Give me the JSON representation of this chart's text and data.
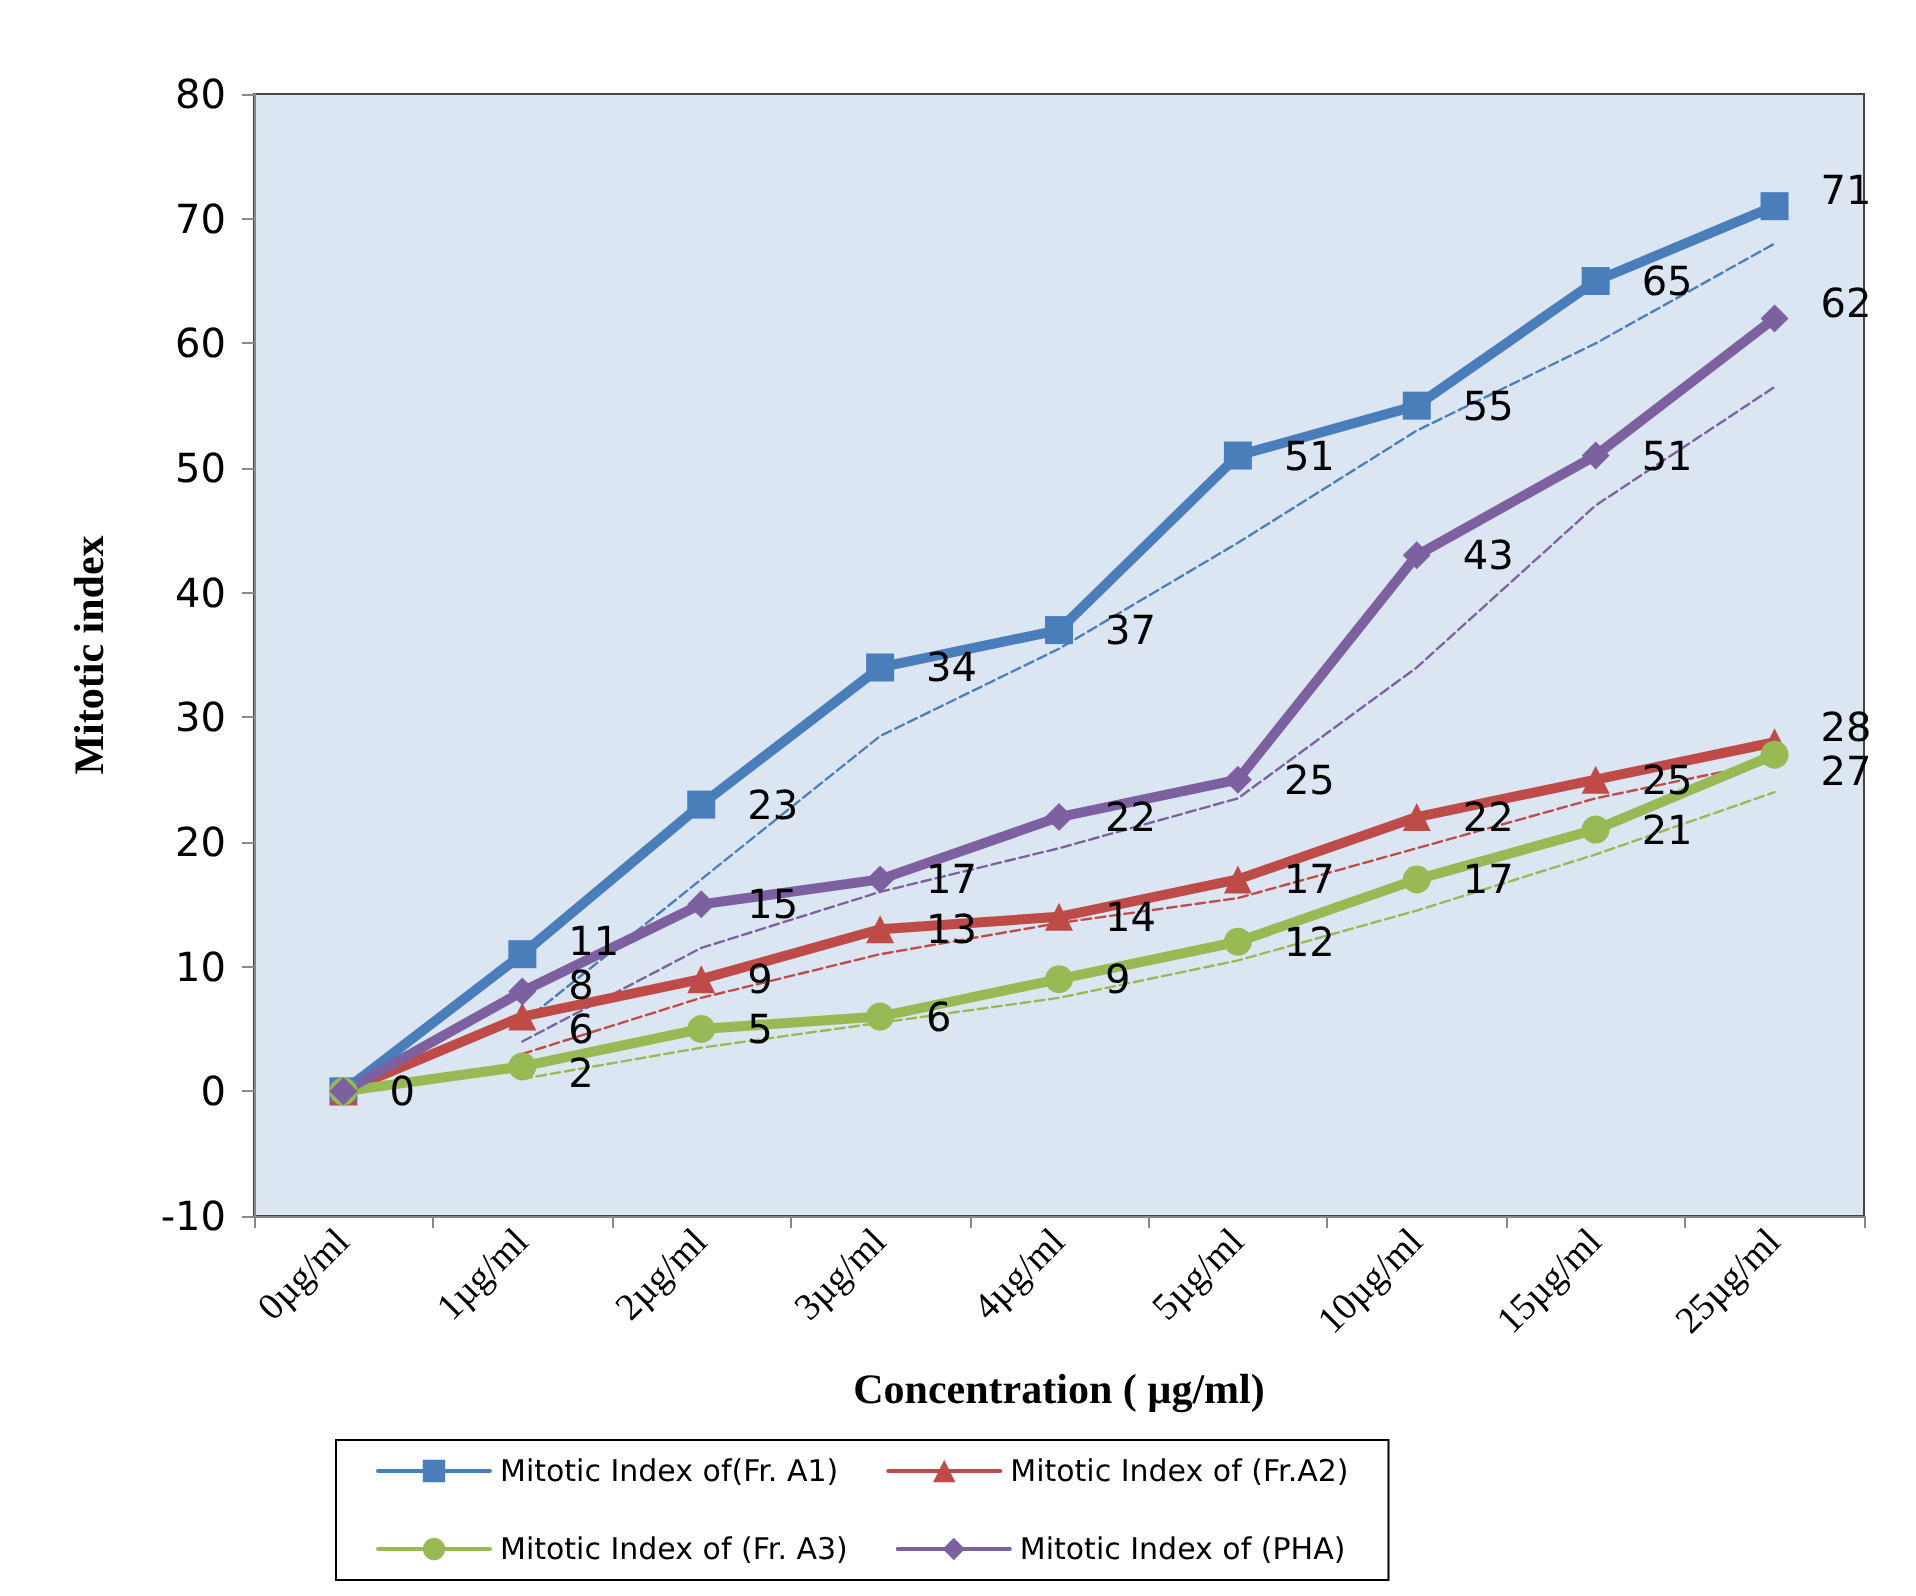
{
  "chart_data": {
    "type": "line",
    "xlabel": "Concentration ( µg/ml)",
    "ylabel": "Mitotic index",
    "categories": [
      "0µg/ml",
      "1µg/ml",
      "2µg/ml",
      "3µg/ml",
      "4µg/ml",
      "5µg/ml",
      "10µg/ml",
      "15µg/ml",
      "25µg/ml"
    ],
    "ylim": [
      -10,
      80
    ],
    "yticks": [
      -10,
      0,
      10,
      20,
      30,
      40,
      50,
      60,
      70,
      80
    ],
    "grid": false,
    "legend": "bottom",
    "line_style": "solid",
    "series": [
      {
        "name": "Mitotic Index of(Fr. A1)",
        "color": "#4a7ebb",
        "marker": "square",
        "values": [
          0,
          11,
          23,
          34,
          37,
          51,
          55,
          65,
          71
        ],
        "value_labels": [
          "0",
          "11",
          "23",
          "34",
          "37",
          "51",
          "55",
          "65",
          "71"
        ]
      },
      {
        "name": "Mitotic Index of (Fr.A2)",
        "color": "#be4b48",
        "marker": "triangle",
        "values": [
          0,
          6,
          9,
          13,
          14,
          17,
          22,
          25,
          28
        ],
        "value_labels": [
          null,
          "6",
          "9",
          "13",
          "14",
          "17",
          "22",
          "25",
          "28"
        ]
      },
      {
        "name": "Mitotic Index of (Fr. A3)",
        "color": "#98b954",
        "marker": "circle",
        "values": [
          0,
          2,
          5,
          6,
          9,
          12,
          17,
          21,
          27
        ],
        "value_labels": [
          null,
          "2",
          "5",
          "6",
          "9",
          "12",
          "17",
          "21",
          "27"
        ]
      },
      {
        "name": "Mitotic Index of (PHA)",
        "color": "#7d60a0",
        "marker": "diamond",
        "values": [
          0,
          8,
          15,
          17,
          22,
          25,
          43,
          51,
          62
        ],
        "value_labels": [
          null,
          "8",
          "15",
          "17",
          "22",
          "25",
          "43",
          "51",
          "62"
        ]
      },
      {
        "color": "#4a7ebb",
        "marker": "none",
        "line_style": "dashed",
        "values": [
          null,
          5.5,
          17,
          28.5,
          35.5,
          44,
          53,
          60,
          68
        ]
      },
      {
        "color": "#be4b48",
        "marker": "none",
        "line_style": "dashed",
        "values": [
          null,
          3,
          7.5,
          11,
          13.5,
          15.5,
          19.5,
          23.5,
          26.5
        ]
      },
      {
        "color": "#98b954",
        "marker": "none",
        "line_style": "dashed",
        "values": [
          null,
          1,
          3.5,
          5.5,
          7.5,
          10.5,
          14.5,
          19,
          24
        ]
      },
      {
        "color": "#7d60a0",
        "marker": "none",
        "line_style": "dashed",
        "values": [
          null,
          4,
          11.5,
          16,
          19.5,
          23.5,
          34,
          47,
          56.5
        ]
      }
    ]
  }
}
